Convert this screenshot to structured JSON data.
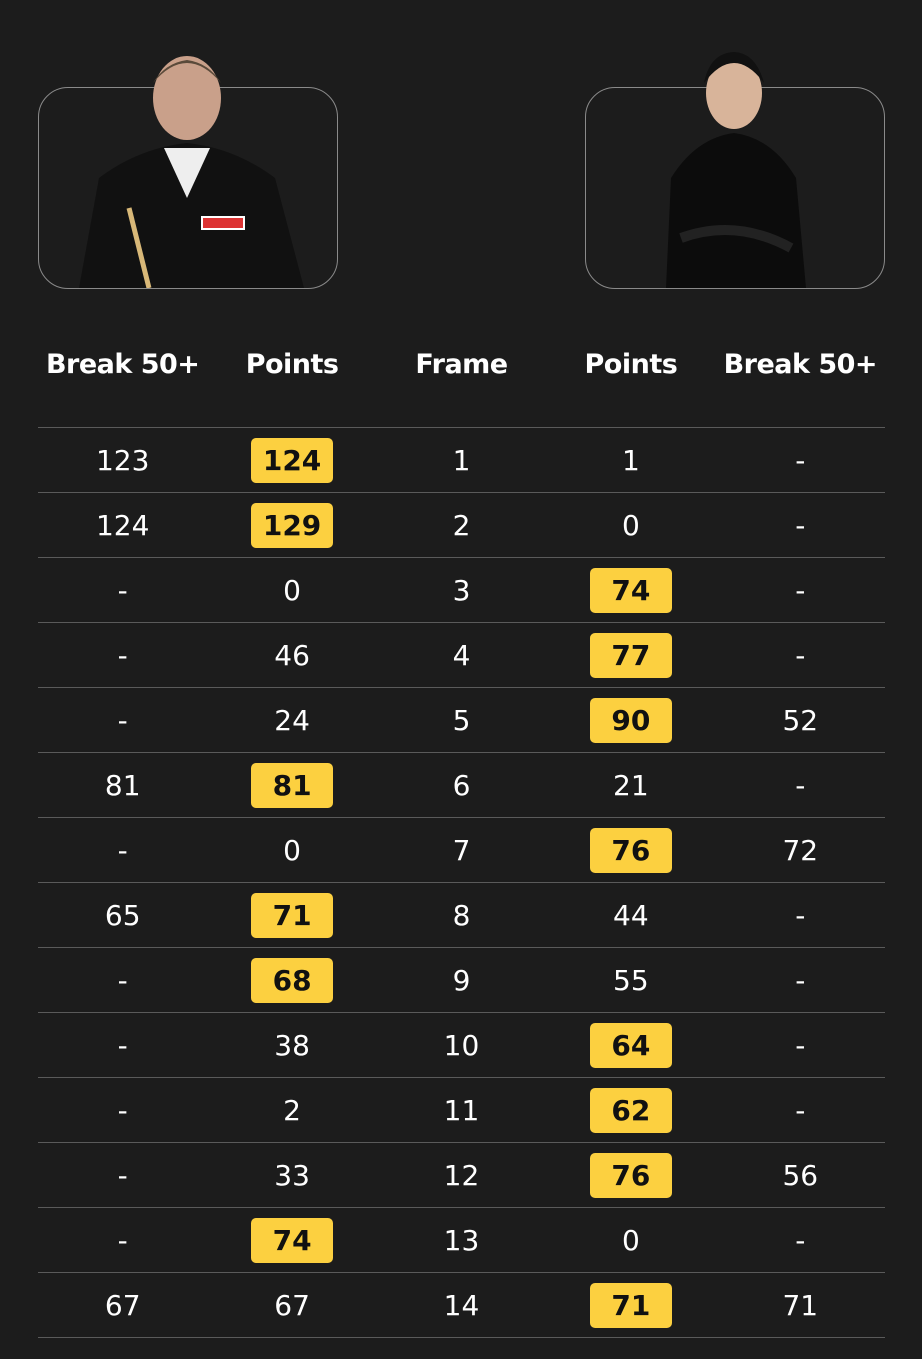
{
  "colors": {
    "background": "#1c1c1c",
    "winner_highlight": "#fcd040"
  },
  "players": [
    {
      "side": "left",
      "photo": "player-photo"
    },
    {
      "side": "right",
      "photo": "player-photo"
    }
  ],
  "headers": [
    "Break 50+",
    "Points",
    "Frame",
    "Points",
    "Break 50+"
  ],
  "rows": [
    {
      "l_break": "123",
      "l_points": "124",
      "frame": "1",
      "r_points": "1",
      "r_break": "-",
      "winner": "left"
    },
    {
      "l_break": "124",
      "l_points": "129",
      "frame": "2",
      "r_points": "0",
      "r_break": "-",
      "winner": "left"
    },
    {
      "l_break": "-",
      "l_points": "0",
      "frame": "3",
      "r_points": "74",
      "r_break": "-",
      "winner": "right"
    },
    {
      "l_break": "-",
      "l_points": "46",
      "frame": "4",
      "r_points": "77",
      "r_break": "-",
      "winner": "right"
    },
    {
      "l_break": "-",
      "l_points": "24",
      "frame": "5",
      "r_points": "90",
      "r_break": "52",
      "winner": "right"
    },
    {
      "l_break": "81",
      "l_points": "81",
      "frame": "6",
      "r_points": "21",
      "r_break": "-",
      "winner": "left"
    },
    {
      "l_break": "-",
      "l_points": "0",
      "frame": "7",
      "r_points": "76",
      "r_break": "72",
      "winner": "right"
    },
    {
      "l_break": "65",
      "l_points": "71",
      "frame": "8",
      "r_points": "44",
      "r_break": "-",
      "winner": "left"
    },
    {
      "l_break": "-",
      "l_points": "68",
      "frame": "9",
      "r_points": "55",
      "r_break": "-",
      "winner": "left"
    },
    {
      "l_break": "-",
      "l_points": "38",
      "frame": "10",
      "r_points": "64",
      "r_break": "-",
      "winner": "right"
    },
    {
      "l_break": "-",
      "l_points": "2",
      "frame": "11",
      "r_points": "62",
      "r_break": "-",
      "winner": "right"
    },
    {
      "l_break": "-",
      "l_points": "33",
      "frame": "12",
      "r_points": "76",
      "r_break": "56",
      "winner": "right"
    },
    {
      "l_break": "-",
      "l_points": "74",
      "frame": "13",
      "r_points": "0",
      "r_break": "-",
      "winner": "left"
    },
    {
      "l_break": "67",
      "l_points": "67",
      "frame": "14",
      "r_points": "71",
      "r_break": "71",
      "winner": "right"
    }
  ]
}
